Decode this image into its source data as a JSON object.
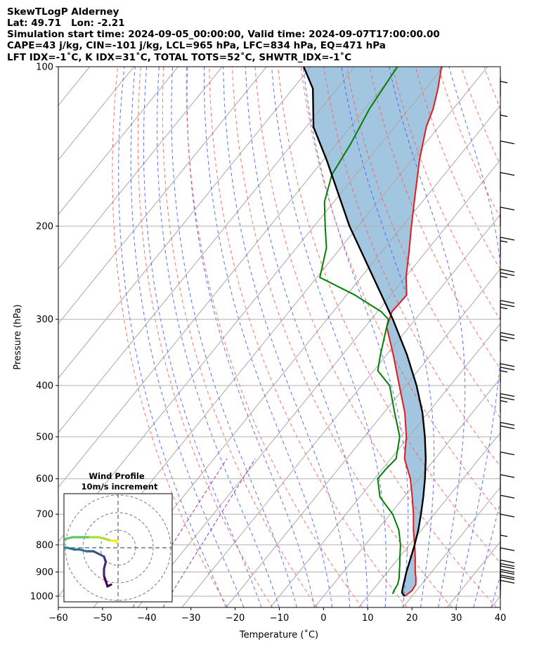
{
  "chart_data": {
    "type": "skew-t-logp",
    "title_lines": [
      "SkewTLogP Alderney",
      "Lat: 49.71   Lon: -2.21",
      "Simulation start time: 2024-09-05_00:00:00, Valid time: 2024-09-07T17:00:00.00",
      "CAPE=43 j/kg, CIN=-101 j/kg, LCL=965 hPa, LFC=834 hPa, EQ=471 hPa",
      "LFT IDX=-1˚C, K IDX=31˚C, TOTAL TOTS=52˚C, SHWTR_IDX=-1˚C"
    ],
    "xlabel": "Temperature (˚C)",
    "ylabel": "Pressure (hPa)",
    "xlim": [
      -60,
      40
    ],
    "ylim": [
      1050,
      100
    ],
    "x_ticks": [
      -60,
      -50,
      -40,
      -30,
      -20,
      -10,
      0,
      10,
      20,
      30,
      40
    ],
    "y_ticks": [
      1000,
      900,
      800,
      700,
      600,
      500,
      400,
      300,
      200,
      100
    ],
    "colors": {
      "temperature": "#e41a1c",
      "dewpoint": "#008000",
      "parcel": "#000000",
      "cape_fill": "#a3c6e0",
      "dry_adiabat": "#ff5555",
      "moist_adiabat": "#4455ff",
      "mixing_ratio": "#9933cc",
      "isotherm": "#a8a8a8",
      "grid": "#b0b0b0"
    },
    "series": [
      {
        "name": "temperature",
        "points": [
          [
            1000,
            18.4
          ],
          [
            975,
            19.0
          ],
          [
            950,
            18.7
          ],
          [
            925,
            17.6
          ],
          [
            900,
            16.3
          ],
          [
            875,
            15.1
          ],
          [
            850,
            13.9
          ],
          [
            800,
            11.2
          ],
          [
            750,
            8.2
          ],
          [
            700,
            5.3
          ],
          [
            650,
            1.9
          ],
          [
            600,
            -1.9
          ],
          [
            550,
            -6.9
          ],
          [
            500,
            -10.5
          ],
          [
            450,
            -15.3
          ],
          [
            400,
            -21.5
          ],
          [
            350,
            -28.5
          ],
          [
            310,
            -35.1
          ],
          [
            290,
            -36.7
          ],
          [
            270,
            -36.4
          ],
          [
            250,
            -39.8
          ],
          [
            225,
            -43.6
          ],
          [
            200,
            -48.0
          ],
          [
            175,
            -52.8
          ],
          [
            150,
            -58.3
          ],
          [
            130,
            -62.8
          ],
          [
            120,
            -64.6
          ],
          [
            110,
            -67.2
          ],
          [
            100,
            -70.4
          ]
        ]
      },
      {
        "name": "dewpoint",
        "points": [
          [
            990,
            15.2
          ],
          [
            975,
            14.9
          ],
          [
            950,
            14.6
          ],
          [
            925,
            13.8
          ],
          [
            900,
            12.7
          ],
          [
            875,
            11.6
          ],
          [
            850,
            10.4
          ],
          [
            800,
            8.0
          ],
          [
            750,
            4.9
          ],
          [
            700,
            0.6
          ],
          [
            650,
            -5.4
          ],
          [
            600,
            -9.3
          ],
          [
            575,
            -9.2
          ],
          [
            550,
            -8.8
          ],
          [
            500,
            -12.0
          ],
          [
            450,
            -17.6
          ],
          [
            400,
            -23.7
          ],
          [
            375,
            -29.1
          ],
          [
            350,
            -31.4
          ],
          [
            300,
            -36.1
          ],
          [
            290,
            -39.2
          ],
          [
            270,
            -48.1
          ],
          [
            250,
            -59.3
          ],
          [
            220,
            -63.2
          ],
          [
            200,
            -67.5
          ],
          [
            180,
            -72.1
          ],
          [
            160,
            -75.4
          ],
          [
            140,
            -76.8
          ],
          [
            120,
            -79.0
          ],
          [
            100,
            -80.4
          ]
        ]
      },
      {
        "name": "parcel",
        "points": [
          [
            1000,
            18.3
          ],
          [
            985,
            17.1
          ],
          [
            965,
            16.4
          ],
          [
            900,
            14.3
          ],
          [
            850,
            12.8
          ],
          [
            800,
            11.2
          ],
          [
            750,
            9.3
          ],
          [
            700,
            7.0
          ],
          [
            650,
            4.4
          ],
          [
            600,
            1.4
          ],
          [
            550,
            -2.1
          ],
          [
            500,
            -6.3
          ],
          [
            450,
            -11.3
          ],
          [
            400,
            -17.6
          ],
          [
            350,
            -25.4
          ],
          [
            300,
            -35.1
          ],
          [
            250,
            -47.2
          ],
          [
            200,
            -62.0
          ],
          [
            150,
            -79.3
          ],
          [
            130,
            -88.3
          ],
          [
            110,
            -95.5
          ],
          [
            100,
            -101.6
          ]
        ]
      }
    ],
    "wind_barbs": [
      {
        "pressure": 998,
        "speed_kt": 20
      },
      {
        "pressure": 975,
        "speed_kt": 20
      },
      {
        "pressure": 952,
        "speed_kt": 20
      },
      {
        "pressure": 928,
        "speed_kt": 20
      },
      {
        "pressure": 880,
        "speed_kt": 10
      },
      {
        "pressure": 820,
        "speed_kt": 5
      },
      {
        "pressure": 760,
        "speed_kt": 10
      },
      {
        "pressure": 700,
        "speed_kt": 10
      },
      {
        "pressure": 640,
        "speed_kt": 10
      },
      {
        "pressure": 580,
        "speed_kt": 10
      },
      {
        "pressure": 510,
        "speed_kt": 20
      },
      {
        "pressure": 450,
        "speed_kt": 25
      },
      {
        "pressure": 395,
        "speed_kt": 25
      },
      {
        "pressure": 345,
        "speed_kt": 25
      },
      {
        "pressure": 300,
        "speed_kt": 25
      },
      {
        "pressure": 262,
        "speed_kt": 25
      },
      {
        "pressure": 228,
        "speed_kt": 15
      },
      {
        "pressure": 200,
        "speed_kt": 10
      },
      {
        "pressure": 172,
        "speed_kt": 10
      },
      {
        "pressure": 150,
        "speed_kt": 10
      },
      {
        "pressure": 132,
        "speed_kt": 5
      },
      {
        "pressure": 114,
        "speed_kt": 5
      }
    ],
    "hodograph": {
      "title": "Wind Profile",
      "subtitle": "10m/s increment",
      "ring_step_ms": 10,
      "ring_count": 3,
      "points": [
        [
          -4,
          -21
        ],
        [
          -6,
          -22
        ],
        [
          -7,
          -19
        ],
        [
          -8,
          -16
        ],
        [
          -8,
          -12
        ],
        [
          -7,
          -8
        ],
        [
          -8,
          -5
        ],
        [
          -10,
          -4
        ],
        [
          -14,
          -2
        ],
        [
          -18,
          -2
        ],
        [
          -22,
          -1
        ],
        [
          -25,
          -1
        ],
        [
          -29,
          0
        ],
        [
          -33,
          0
        ],
        [
          -35,
          1
        ],
        [
          -36,
          2
        ],
        [
          -33,
          3
        ],
        [
          -30,
          5
        ],
        [
          -26,
          6
        ],
        [
          -21,
          6
        ],
        [
          -16,
          6
        ],
        [
          -11,
          6
        ],
        [
          -7,
          5
        ],
        [
          -4,
          4
        ],
        [
          -1,
          4
        ],
        [
          -1,
          3
        ]
      ]
    }
  }
}
